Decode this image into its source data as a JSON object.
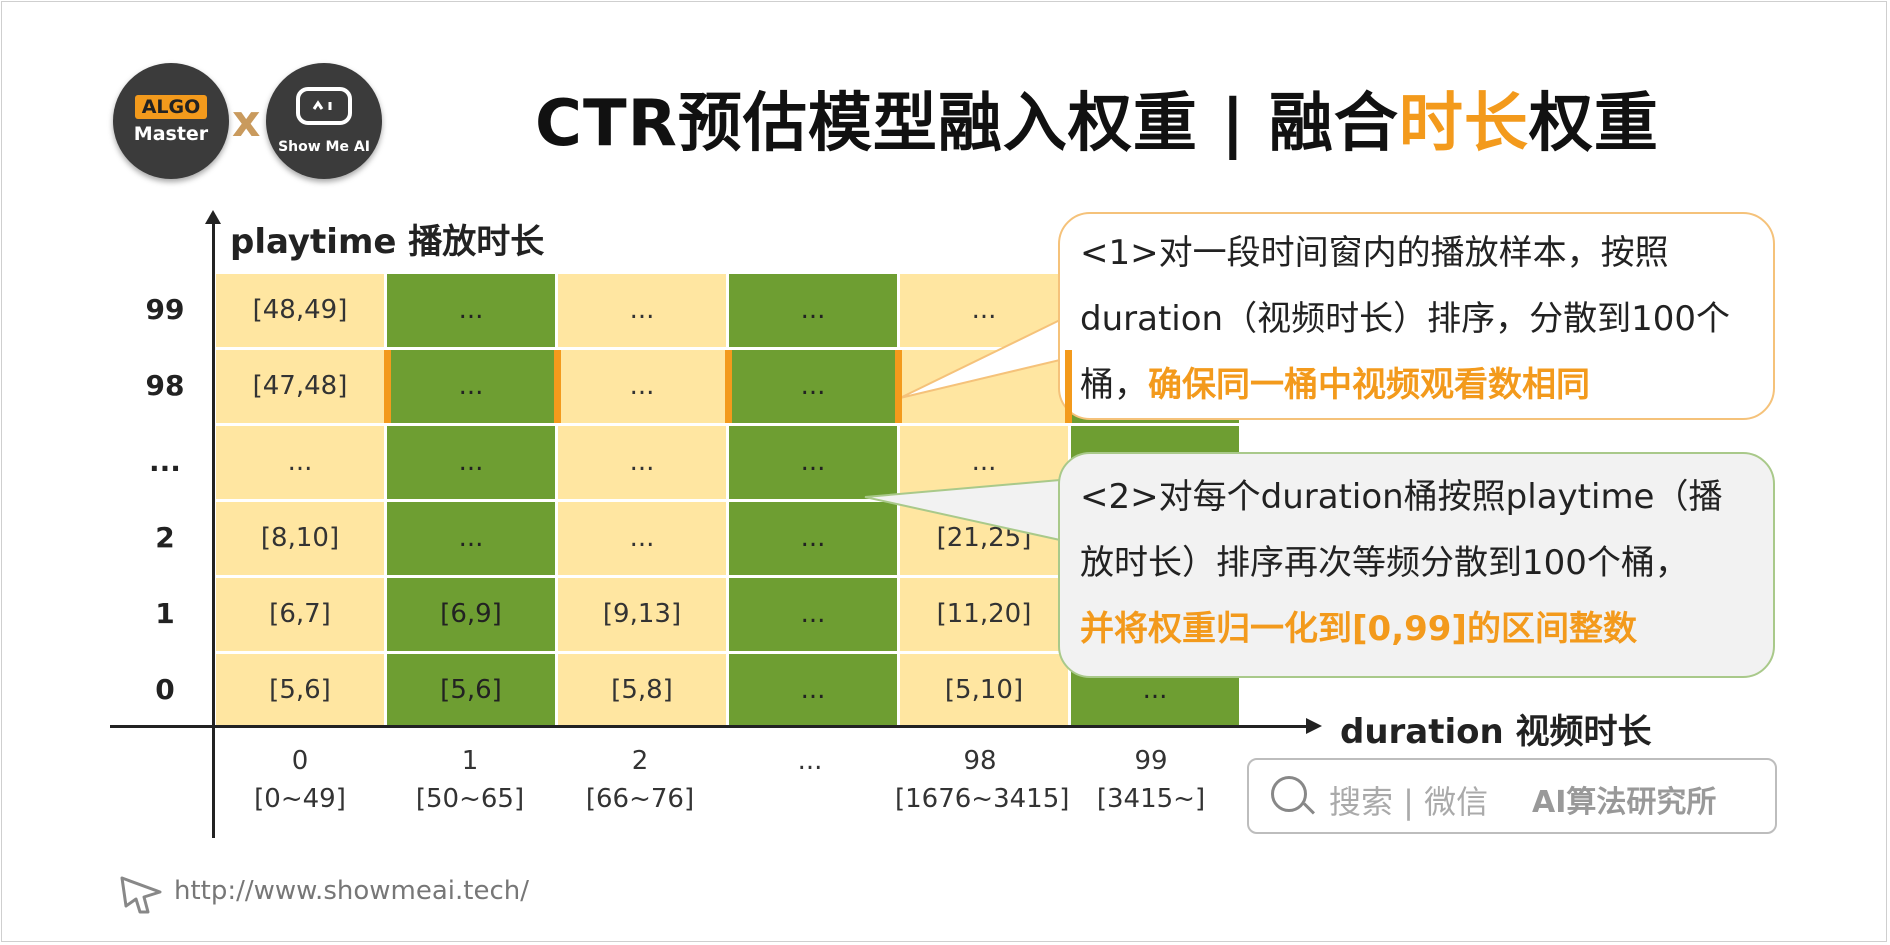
{
  "logos": {
    "algo_tag": "ALGO",
    "algo_sub": "Master",
    "separator": "x",
    "ai_sub": "Show Me AI",
    "ai_icon": "robot-face-icon"
  },
  "title": {
    "prefix": "CTR预估模型融入权重 | 融合",
    "highlight": "时长",
    "suffix": "权重"
  },
  "axes": {
    "y_title": "playtime 播放时长",
    "x_title": "duration 视频时长"
  },
  "y_labels": [
    "99",
    "98",
    "...",
    "2",
    "1",
    "0"
  ],
  "x_labels": [
    {
      "top": "0",
      "bottom": "[0~49]"
    },
    {
      "top": "1",
      "bottom": "[50~65]"
    },
    {
      "top": "2",
      "bottom": "[66~76]"
    },
    {
      "top": "...",
      "bottom": ""
    },
    {
      "top": "98",
      "bottom": "[1676~3415]"
    },
    {
      "top": "99",
      "bottom": "[3415~]"
    }
  ],
  "grid": {
    "columns": [
      {
        "color": "yellow",
        "cells": [
          "[48,49]",
          "[47,48]",
          "...",
          "[8,10]",
          "[6,7]",
          "[5,6]"
        ]
      },
      {
        "color": "green",
        "cells": [
          "...",
          "...",
          "...",
          "...",
          "[6,9]",
          "[5,6]"
        ]
      },
      {
        "color": "yellow",
        "cells": [
          "...",
          "...",
          "...",
          "...",
          "[9,13]",
          "[5,8]"
        ]
      },
      {
        "color": "green",
        "cells": [
          "...",
          "...",
          "...",
          "...",
          "...",
          "..."
        ]
      },
      {
        "color": "yellow",
        "cells": [
          "...",
          "",
          "...",
          "[21,25]",
          "[11,20]",
          "[5,10]"
        ]
      },
      {
        "color": "green",
        "cells": [
          "",
          "",
          "",
          "",
          "",
          "..."
        ]
      }
    ]
  },
  "callouts": {
    "c1": {
      "line1": "<1>对一段时间窗内的播放样本，按照",
      "line2": "duration（视频时长）排序，分散到100个",
      "line3_prefix": "桶，",
      "line3_highlight": "确保同一桶中视频观看数相同"
    },
    "c2": {
      "line1": "<2>对每个duration桶按照playtime（播",
      "line2": "放时长）排序再次等频分散到100个桶，",
      "line3_highlight": "并将权重归一化到[0,99]的区间整数"
    }
  },
  "search": {
    "icon": "search-icon",
    "placeholder": "搜索 | 微信",
    "account": "AI算法研究所"
  },
  "footer": {
    "url": "http://www.showmeai.tech/",
    "icon": "cursor-icon"
  },
  "colors": {
    "accent": "#f39a1c",
    "green": "#6e9e32",
    "yellow": "#ffe6a1"
  }
}
